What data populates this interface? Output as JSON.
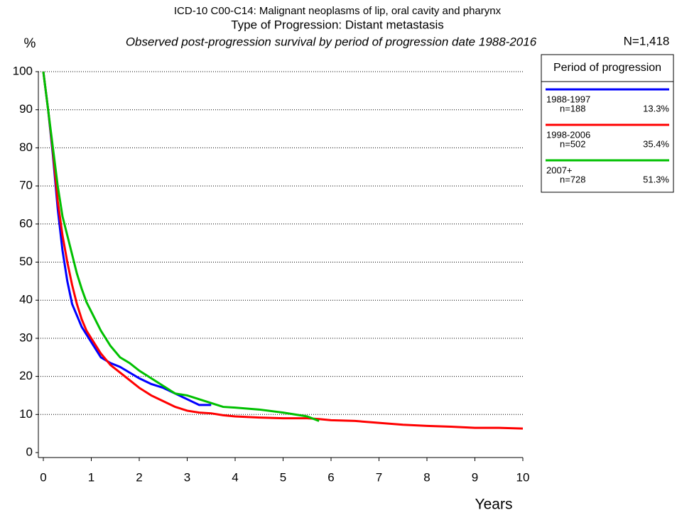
{
  "chart_data": {
    "type": "line",
    "title": "ICD-10 C00-C14: Malignant neoplasms of lip, oral cavity and pharynx",
    "subtitle": "Type of Progression: Distant metastasis",
    "caption": "Observed post-progression survival by period of progression date 1988-2016",
    "total": "N=1,418",
    "y_label": "%",
    "x_label": "Years",
    "legend_title": "Period of progression",
    "x": [
      0,
      0.1,
      0.2,
      0.3,
      0.4,
      0.5,
      0.6,
      0.7,
      0.8,
      0.9,
      1.0,
      1.2,
      1.4,
      1.6,
      1.8,
      2,
      2.25,
      2.5,
      2.75,
      3,
      3.25,
      3.5,
      3.75,
      4,
      4.5,
      5,
      5.5,
      5.75,
      6,
      6.5,
      7,
      7.5,
      8,
      8.5,
      9,
      9.5,
      10
    ],
    "series": [
      {
        "name": "1988-1997",
        "n": "n=188",
        "share": "13.3%",
        "color": "#0000ff",
        "values": [
          100,
          90,
          78,
          64,
          53,
          45,
          39,
          36,
          33,
          31,
          29,
          25,
          23.5,
          22.5,
          21,
          19.5,
          18,
          17,
          15.5,
          14,
          12.5,
          12.5,
          null,
          null,
          null,
          null,
          null,
          null,
          null,
          null,
          null,
          null,
          null,
          null,
          null,
          null,
          null
        ]
      },
      {
        "name": "1998-2006",
        "n": "n=502",
        "share": "35.4%",
        "color": "#ff0000",
        "values": [
          100,
          90,
          79,
          66,
          57,
          50,
          44,
          39,
          35,
          32,
          30,
          26,
          23,
          21,
          19,
          17,
          15,
          13.5,
          12,
          11,
          10.5,
          10.3,
          9.8,
          9.5,
          9.2,
          9,
          9,
          8.8,
          8.5,
          8.3,
          7.8,
          7.3,
          7,
          6.8,
          6.5,
          6.5,
          6.3
        ]
      },
      {
        "name": "2007+",
        "n": "n=728",
        "share": "51.3%",
        "color": "#00c000",
        "values": [
          100,
          90,
          80,
          70,
          62,
          57,
          52,
          47,
          43,
          39.5,
          37,
          32,
          28,
          25,
          23.5,
          21.5,
          19.5,
          17.5,
          15.5,
          15,
          14,
          13,
          12,
          11.8,
          11.3,
          10.5,
          9.5,
          8.3,
          null,
          null,
          null,
          null,
          null,
          null,
          null,
          null,
          null
        ]
      }
    ],
    "xlim": [
      0,
      10
    ],
    "xticks": [
      0,
      1,
      2,
      3,
      4,
      5,
      6,
      7,
      8,
      9,
      10
    ],
    "ylim": [
      0,
      100
    ],
    "yticks": [
      0,
      10,
      20,
      30,
      40,
      50,
      60,
      70,
      80,
      90,
      100
    ],
    "grid": true
  }
}
